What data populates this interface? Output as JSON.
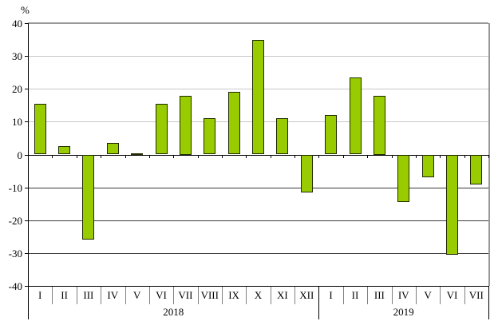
{
  "chart_data": {
    "type": "bar",
    "title": "",
    "ylabel": "%",
    "xlabel": "",
    "ylim": [
      -40,
      40
    ],
    "yticks": [
      40,
      30,
      20,
      10,
      0,
      -10,
      -20,
      -30,
      -40
    ],
    "grid": true,
    "legend": "none",
    "groups": [
      {
        "year": "2018",
        "categories": [
          "I",
          "II",
          "III",
          "IV",
          "V",
          "VI",
          "VII",
          "VIII",
          "IX",
          "X",
          "XI",
          "XII"
        ],
        "values": [
          15.5,
          2.5,
          -26,
          3.5,
          0.4,
          15.5,
          18,
          11,
          19,
          35,
          11,
          -11.5
        ]
      },
      {
        "year": "2019",
        "categories": [
          "I",
          "II",
          "III",
          "IV",
          "V",
          "VI",
          "VII"
        ],
        "values": [
          12,
          23.5,
          18,
          -14.5,
          -7,
          -30.5,
          -9
        ]
      }
    ],
    "colors": {
      "bar_fill": "#99CC00",
      "bar_border": "#1F2A00",
      "grid_positive": "#C8C8C8",
      "grid_negative": "#3A3A3A",
      "zero_line": "#000000",
      "bottom_line": "#000000",
      "plot_border": "#989898",
      "month_separator": "#808080",
      "text": "#000000"
    }
  }
}
